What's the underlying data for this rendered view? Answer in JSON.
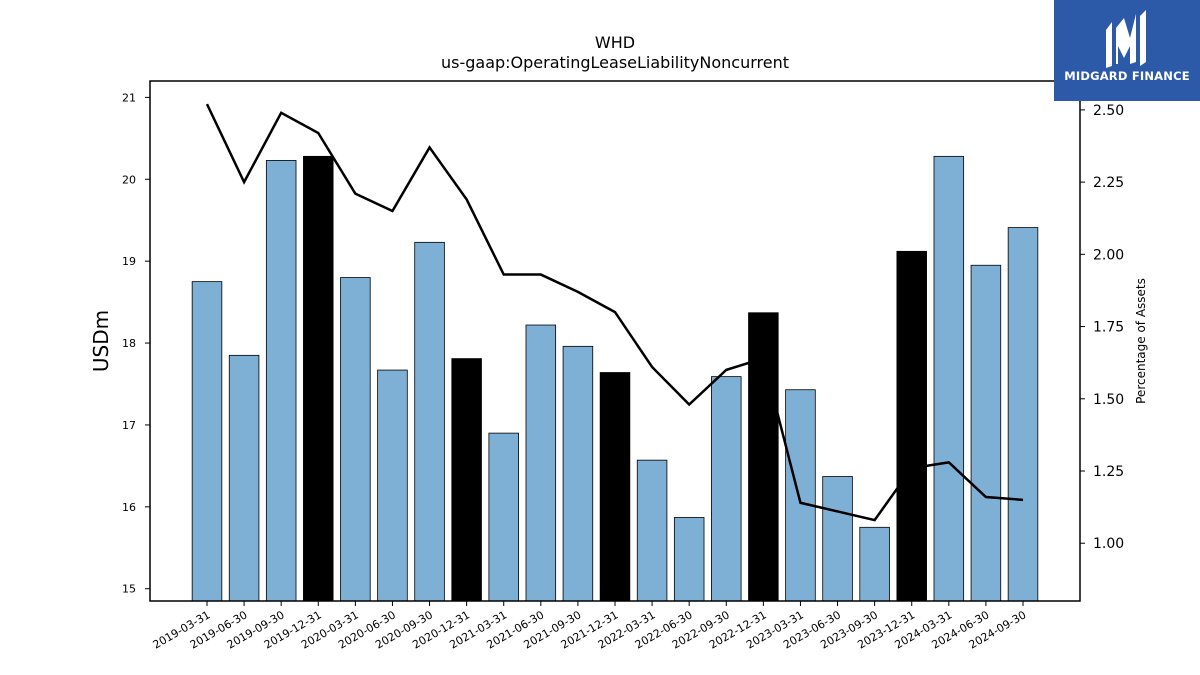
{
  "brand": {
    "name": "MIDGARD FINANCE",
    "logo_color": "#2d5aa8"
  },
  "chart_data": {
    "type": "bar",
    "title": "WHD",
    "subtitle": "us-gaap:OperatingLeaseLiabilityNoncurrent",
    "ylabel": "USDm",
    "y2label": "Percentage of Assets",
    "ylim": [
      14.85,
      21.2
    ],
    "y2lim": [
      0.8,
      2.6
    ],
    "yticks": [
      15,
      16,
      17,
      18,
      19,
      20,
      21
    ],
    "y2ticks": [
      "1.00",
      "1.25",
      "1.50",
      "1.75",
      "2.00",
      "2.25",
      "2.50"
    ],
    "categories": [
      "2019-03-31",
      "2019-06-30",
      "2019-09-30",
      "2019-12-31",
      "2020-03-31",
      "2020-06-30",
      "2020-09-30",
      "2020-12-31",
      "2021-03-31",
      "2021-06-30",
      "2021-09-30",
      "2021-12-31",
      "2022-03-31",
      "2022-06-30",
      "2022-09-30",
      "2022-12-31",
      "2023-03-31",
      "2023-06-30",
      "2023-09-30",
      "2023-12-31",
      "2024-03-31",
      "2024-06-30",
      "2024-09-30"
    ],
    "series": [
      {
        "values": [
          18.75,
          17.85,
          20.23,
          20.28,
          18.8,
          17.67,
          19.23,
          17.81,
          16.9,
          18.22,
          17.96,
          17.64,
          16.57,
          15.87,
          17.59,
          18.37,
          17.43,
          16.37,
          15.75,
          19.12,
          20.28,
          18.95,
          19.41
        ],
        "highlight": [
          false,
          false,
          false,
          true,
          false,
          false,
          false,
          true,
          false,
          false,
          false,
          true,
          false,
          false,
          false,
          true,
          false,
          false,
          false,
          true,
          false,
          false,
          false
        ],
        "color": "#7eb0d5",
        "highlight_color": "#000000"
      },
      {
        "axis": "right",
        "type": "line",
        "values": [
          2.52,
          2.25,
          2.49,
          2.42,
          2.21,
          2.15,
          2.37,
          2.19,
          1.93,
          1.93,
          1.87,
          1.8,
          1.61,
          1.48,
          1.6,
          1.64,
          1.14,
          1.11,
          1.08,
          1.26,
          1.28,
          1.16,
          1.15
        ],
        "color": "#000000"
      }
    ],
    "grid": false,
    "legend": "none"
  }
}
